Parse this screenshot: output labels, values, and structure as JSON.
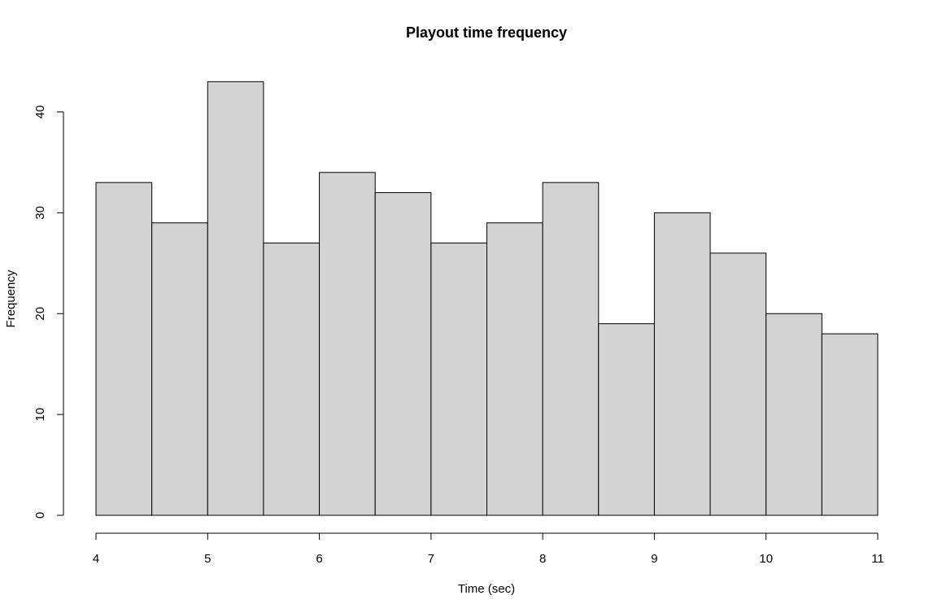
{
  "chart_data": {
    "type": "bar",
    "title": "Playout time frequency",
    "xlabel": "Time (sec)",
    "ylabel": "Frequency",
    "bins": [
      {
        "start": 4.0,
        "end": 4.5,
        "count": 33
      },
      {
        "start": 4.5,
        "end": 5.0,
        "count": 29
      },
      {
        "start": 5.0,
        "end": 5.5,
        "count": 43
      },
      {
        "start": 5.5,
        "end": 6.0,
        "count": 27
      },
      {
        "start": 6.0,
        "end": 6.5,
        "count": 34
      },
      {
        "start": 6.5,
        "end": 7.0,
        "count": 32
      },
      {
        "start": 7.0,
        "end": 7.5,
        "count": 27
      },
      {
        "start": 7.5,
        "end": 8.0,
        "count": 29
      },
      {
        "start": 8.0,
        "end": 8.5,
        "count": 33
      },
      {
        "start": 8.5,
        "end": 9.0,
        "count": 19
      },
      {
        "start": 9.0,
        "end": 9.5,
        "count": 30
      },
      {
        "start": 9.5,
        "end": 10.0,
        "count": 26
      },
      {
        "start": 10.0,
        "end": 10.5,
        "count": 20
      },
      {
        "start": 10.5,
        "end": 11.0,
        "count": 18
      }
    ],
    "xlim": [
      4,
      11
    ],
    "ylim": [
      0,
      43
    ],
    "x_ticks": [
      "4",
      "5",
      "6",
      "7",
      "8",
      "9",
      "10",
      "11"
    ],
    "y_ticks": [
      "0",
      "10",
      "20",
      "30",
      "40"
    ],
    "grid": false,
    "bar_color": "#d3d3d3",
    "edge_color": "#000000"
  }
}
